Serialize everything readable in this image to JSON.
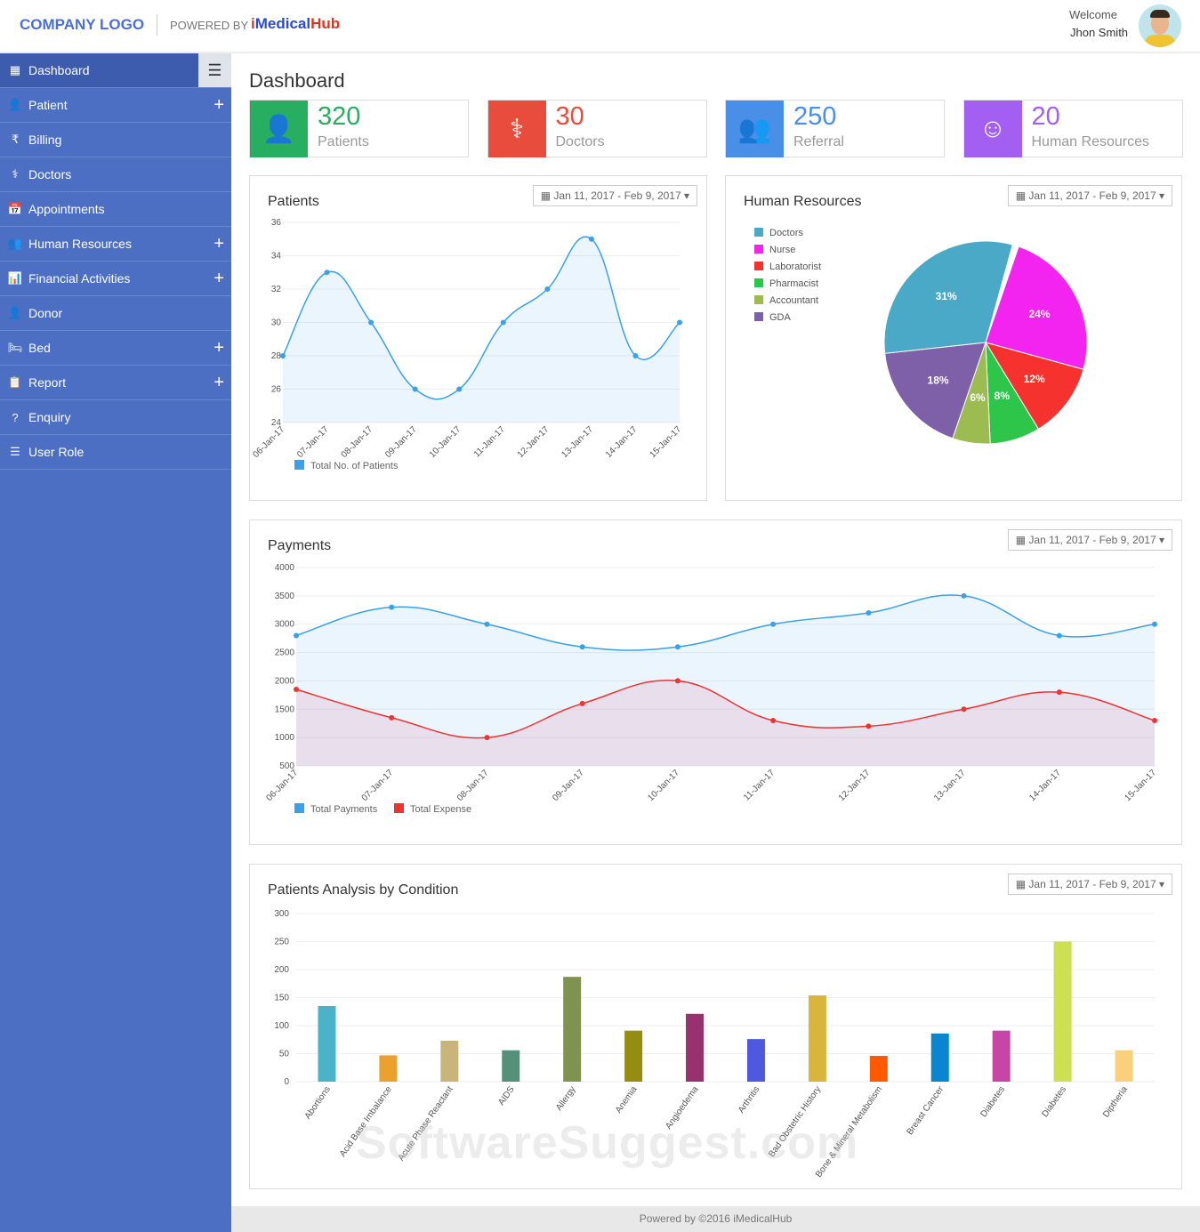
{
  "header": {
    "logo": "COMPANY LOGO",
    "powered_by": "POWERED BY",
    "brand_prefix": "i",
    "brand_main": "Medical",
    "brand_suffix": "Hub",
    "welcome": "Welcome",
    "user_name": "Jhon Smith"
  },
  "sidebar": {
    "items": [
      {
        "label": "Dashboard",
        "icon": "▦",
        "expand": false,
        "active": true
      },
      {
        "label": "Patient",
        "icon": "👤",
        "expand": true
      },
      {
        "label": "Billing",
        "icon": "₹",
        "expand": false
      },
      {
        "label": "Doctors",
        "icon": "⚕",
        "expand": false
      },
      {
        "label": "Appointments",
        "icon": "📅",
        "expand": false
      },
      {
        "label": "Human Resources",
        "icon": "👥",
        "expand": true
      },
      {
        "label": "Financial Activities",
        "icon": "📊",
        "expand": true
      },
      {
        "label": "Donor",
        "icon": "👤",
        "expand": false
      },
      {
        "label": "Bed",
        "icon": "🛏",
        "expand": true
      },
      {
        "label": "Report",
        "icon": "📋",
        "expand": true
      },
      {
        "label": "Enquiry",
        "icon": "?",
        "expand": false
      },
      {
        "label": "User Role",
        "icon": "☰",
        "expand": false
      }
    ]
  },
  "page_title": "Dashboard",
  "stats": [
    {
      "value": "320",
      "label": "Patients",
      "color": "#27ae60"
    },
    {
      "value": "30",
      "label": "Doctors",
      "color": "#e74c3c"
    },
    {
      "value": "250",
      "label": "Referral",
      "color": "#4a8fe7"
    },
    {
      "value": "20",
      "label": "Human Resources",
      "color": "#a35ef2"
    }
  ],
  "date_range": "Jan 11, 2017 - Feb 9, 2017",
  "footer": "Powered by ©2016 iMedicalHub",
  "watermark": "SoftwareSuggest.com",
  "chart_data": [
    {
      "type": "area",
      "title": "Patients",
      "categories": [
        "06-Jan-17",
        "07-Jan-17",
        "08-Jan-17",
        "09-Jan-17",
        "10-Jan-17",
        "11-Jan-17",
        "12-Jan-17",
        "13-Jan-17",
        "14-Jan-17",
        "15-Jan-17"
      ],
      "ylim": [
        24,
        36
      ],
      "yticks": [
        24,
        26,
        28,
        30,
        32,
        34,
        36
      ],
      "series": [
        {
          "name": "Total No. of Patients",
          "color": "#3aa0ea",
          "values": [
            28,
            33,
            30,
            26,
            26,
            30,
            32,
            35,
            28,
            30
          ]
        }
      ],
      "legend": "bottom-left",
      "grid": true
    },
    {
      "type": "pie",
      "title": "Human Resources",
      "slices": [
        {
          "label": "Doctors",
          "value": 31,
          "color": "#4aa9c6"
        },
        {
          "label": "Nurse",
          "value": 24,
          "color": "#f424f0"
        },
        {
          "label": "Laboratorist",
          "value": 12,
          "color": "#f6322e"
        },
        {
          "label": "Pharmacist",
          "value": 8,
          "color": "#2ec64a"
        },
        {
          "label": "Accountant",
          "value": 6,
          "color": "#9cbb50"
        },
        {
          "label": "GDA",
          "value": 18,
          "color": "#7e60a8"
        }
      ],
      "legend": "top-left"
    },
    {
      "type": "area",
      "title": "Payments",
      "categories": [
        "06-Jan-17",
        "07-Jan-17",
        "08-Jan-17",
        "09-Jan-17",
        "10-Jan-17",
        "11-Jan-17",
        "12-Jan-17",
        "13-Jan-17",
        "14-Jan-17",
        "15-Jan-17"
      ],
      "ylim": [
        500,
        4000
      ],
      "yticks": [
        500,
        1000,
        1500,
        2000,
        2500,
        3000,
        3500,
        4000
      ],
      "series": [
        {
          "name": "Total Payments",
          "color": "#3aa0ea",
          "values": [
            2800,
            3300,
            3000,
            2600,
            2600,
            3000,
            3200,
            3500,
            2800,
            3000
          ]
        },
        {
          "name": "Total Expense",
          "color": "#ee3333",
          "values": [
            1850,
            1350,
            1000,
            1600,
            2000,
            1300,
            1200,
            1500,
            1800,
            1300
          ]
        }
      ],
      "legend": "bottom-left",
      "grid": true
    },
    {
      "type": "bar",
      "title": "Patients Analysis by Condition",
      "ylim": [
        0,
        300
      ],
      "yticks": [
        0,
        50,
        100,
        150,
        200,
        250,
        300
      ],
      "categories": [
        "Abortions",
        "Acid Base Imbalance",
        "Acute Phase Reactant",
        "AIDS",
        "Allergy",
        "Anemia",
        "Angioedema",
        "Arthritis",
        "Bad Obstetric History",
        "Bone & Mineral Metabolism",
        "Breast Cancer",
        "Diabetes",
        "Diabetes",
        "Diptheria"
      ],
      "values": [
        135,
        47,
        73,
        56,
        187,
        91,
        121,
        76,
        154,
        46,
        86,
        91,
        250,
        56
      ],
      "colors": [
        "#4ab3c9",
        "#eba22c",
        "#c9b47a",
        "#559178",
        "#7f9250",
        "#958d12",
        "#97316f",
        "#4d5ae0",
        "#d8b53c",
        "#ff5a00",
        "#0a85cf",
        "#c845a8",
        "#cde052",
        "#fad17a"
      ],
      "grid": true
    }
  ]
}
